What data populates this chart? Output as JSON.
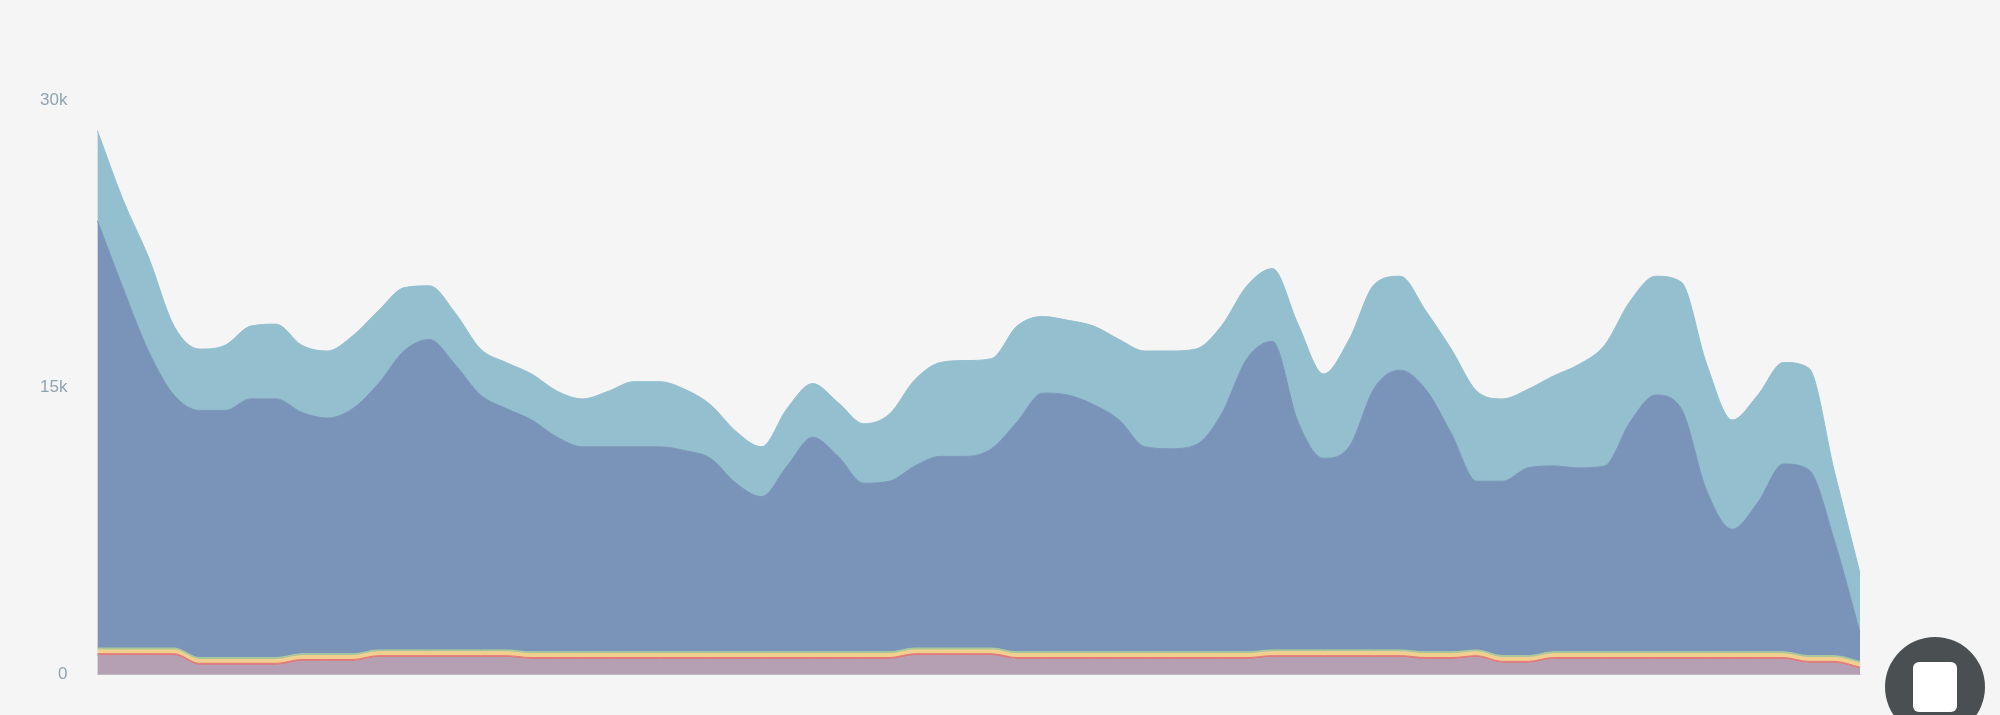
{
  "chart_data": {
    "type": "area",
    "stacked": true,
    "categories": [
      null,
      null,
      null,
      null,
      null,
      null,
      null,
      null,
      null,
      null,
      null,
      null,
      null,
      null,
      null,
      null,
      null,
      null,
      null,
      null,
      null,
      null,
      null,
      null,
      null,
      null,
      null,
      null,
      null,
      null,
      null,
      null,
      null,
      null,
      null,
      null,
      null,
      null,
      null,
      null,
      null,
      null,
      null,
      null,
      null,
      null,
      null,
      null,
      null,
      null,
      null,
      null,
      null,
      null,
      null,
      null,
      null,
      null,
      null,
      null,
      null,
      null,
      null,
      null,
      null,
      null,
      null,
      null,
      null,
      null
    ],
    "series": [
      {
        "color": "#b49fb3",
        "values": [
          1000,
          1000,
          1000,
          1000,
          500,
          500,
          500,
          500,
          700,
          700,
          700,
          900,
          900,
          900,
          900,
          900,
          900,
          800,
          800,
          800,
          800,
          800,
          800,
          800,
          800,
          800,
          800,
          800,
          800,
          800,
          800,
          800,
          1000,
          1000,
          1000,
          1000,
          800,
          800,
          800,
          800,
          800,
          800,
          800,
          800,
          800,
          800,
          900,
          900,
          900,
          900,
          900,
          900,
          800,
          800,
          900,
          600,
          600,
          800,
          800,
          800,
          800,
          800,
          800,
          800,
          800,
          800,
          800,
          600,
          600,
          300
        ]
      },
      {
        "color": "#e07a7a",
        "values": [
          100,
          100,
          100,
          100,
          100,
          100,
          100,
          100,
          100,
          100,
          100,
          100,
          100,
          100,
          100,
          100,
          100,
          100,
          100,
          100,
          100,
          100,
          100,
          100,
          100,
          100,
          100,
          100,
          100,
          100,
          100,
          100,
          100,
          100,
          100,
          100,
          100,
          100,
          100,
          100,
          100,
          100,
          100,
          100,
          100,
          100,
          100,
          100,
          100,
          100,
          100,
          100,
          100,
          100,
          100,
          100,
          100,
          100,
          100,
          100,
          100,
          100,
          100,
          100,
          100,
          100,
          100,
          100,
          100,
          100
        ]
      },
      {
        "color": "#f2cf8f",
        "values": [
          200,
          200,
          200,
          200,
          200,
          200,
          200,
          200,
          200,
          200,
          200,
          200,
          200,
          200,
          200,
          200,
          200,
          200,
          200,
          200,
          200,
          200,
          200,
          200,
          200,
          200,
          200,
          200,
          200,
          200,
          200,
          200,
          200,
          200,
          200,
          200,
          200,
          200,
          200,
          200,
          200,
          200,
          200,
          200,
          200,
          200,
          200,
          200,
          200,
          200,
          200,
          200,
          200,
          200,
          200,
          200,
          200,
          200,
          200,
          200,
          200,
          200,
          200,
          200,
          200,
          200,
          200,
          200,
          200,
          200
        ]
      },
      {
        "color": "#a8c89a",
        "values": [
          100,
          100,
          100,
          100,
          100,
          100,
          100,
          100,
          100,
          100,
          100,
          100,
          100,
          100,
          100,
          100,
          100,
          100,
          100,
          100,
          100,
          100,
          100,
          100,
          100,
          100,
          100,
          100,
          100,
          100,
          100,
          100,
          100,
          100,
          100,
          100,
          100,
          100,
          100,
          100,
          100,
          100,
          100,
          100,
          100,
          100,
          100,
          100,
          100,
          100,
          100,
          100,
          100,
          100,
          100,
          100,
          100,
          100,
          100,
          100,
          100,
          100,
          100,
          100,
          100,
          100,
          100,
          100,
          100,
          100
        ]
      },
      {
        "color": "#7a94b9",
        "values": [
          22300,
          18800,
          15500,
          13200,
          12900,
          12900,
          13500,
          13500,
          12600,
          12300,
          12800,
          13900,
          15600,
          16200,
          14900,
          13300,
          12600,
          12100,
          11200,
          10700,
          10700,
          10700,
          10700,
          10500,
          10100,
          8800,
          8100,
          9700,
          11200,
          10200,
          8800,
          8900,
          9500,
          10000,
          10000,
          10400,
          12000,
          13500,
          13400,
          12900,
          12100,
          10700,
          10600,
          10800,
          12400,
          15300,
          16100,
          11900,
          10000,
          10600,
          13700,
          14600,
          13700,
          11400,
          8800,
          9100,
          9800,
          9700,
          9600,
          9700,
          12000,
          13400,
          12700,
          8400,
          6400,
          7800,
          9800,
          9700,
          6000,
          1500
        ]
      },
      {
        "color": "#93bfcf",
        "values": [
          4700,
          4600,
          4900,
          3600,
          3200,
          3400,
          3800,
          3900,
          3500,
          3500,
          3800,
          3800,
          3300,
          2800,
          2700,
          2400,
          2400,
          2400,
          2400,
          2500,
          2900,
          3400,
          3400,
          3200,
          2800,
          2700,
          2600,
          3000,
          2800,
          2800,
          3100,
          3500,
          4500,
          4900,
          5000,
          4700,
          5000,
          4000,
          3900,
          4100,
          4200,
          5000,
          5100,
          5000,
          4600,
          3800,
          3800,
          5100,
          4400,
          5600,
          5400,
          4900,
          4100,
          4400,
          4700,
          4300,
          4100,
          4700,
          5400,
          6300,
          6300,
          6200,
          6600,
          6600,
          5700,
          5600,
          5300,
          5300,
          3600,
          3100
        ]
      }
    ],
    "ylim": [
      0,
      30000
    ],
    "yticks": [
      {
        "value": 0,
        "label": "0"
      },
      {
        "value": 15000,
        "label": "15k"
      },
      {
        "value": 30000,
        "label": "30k"
      }
    ],
    "grid": false,
    "legend": false
  }
}
